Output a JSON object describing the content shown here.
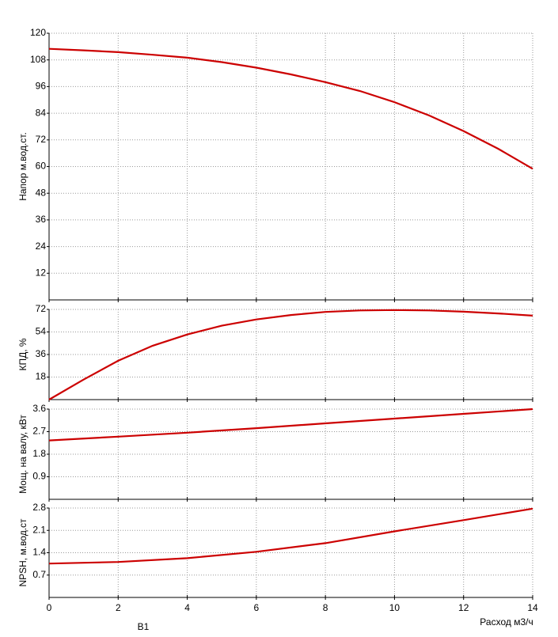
{
  "chart_data": [
    {
      "type": "line",
      "ylabel": "Напор м.вод.ст.",
      "x": [
        0,
        1,
        2,
        3,
        4,
        5,
        6,
        7,
        8,
        9,
        10,
        11,
        12,
        13,
        14
      ],
      "values": [
        113,
        112.3,
        111.5,
        110.3,
        109,
        107,
        104.5,
        101.5,
        98,
        94,
        89,
        83,
        76,
        68,
        59
      ],
      "color": "#cc0000",
      "xlim": [
        0,
        14
      ],
      "xticks": [
        0,
        2,
        4,
        6,
        8,
        10,
        12,
        14
      ],
      "ylim": [
        0,
        120
      ],
      "yticks": [
        12,
        24,
        36,
        48,
        60,
        72,
        84,
        96,
        108,
        120
      ],
      "grid": true
    },
    {
      "type": "line",
      "ylabel": "КПД, %",
      "x": [
        0,
        1,
        2,
        3,
        4,
        5,
        6,
        7,
        8,
        9,
        10,
        11,
        12,
        13,
        14
      ],
      "values": [
        0,
        16,
        31,
        43,
        52,
        59,
        64,
        67.5,
        70,
        71.2,
        71.5,
        71.2,
        70.2,
        68.8,
        67
      ],
      "color": "#cc0000",
      "xlim": [
        0,
        14
      ],
      "xticks": [
        0,
        2,
        4,
        6,
        8,
        10,
        12,
        14
      ],
      "ylim": [
        0,
        72
      ],
      "yticks": [
        18,
        36,
        54,
        72
      ],
      "grid": true
    },
    {
      "type": "line",
      "ylabel": "Мощ. на валу, кВт",
      "x": [
        0,
        2,
        4,
        6,
        8,
        10,
        12,
        14
      ],
      "values": [
        2.35,
        2.5,
        2.66,
        2.84,
        3.03,
        3.22,
        3.41,
        3.6
      ],
      "color": "#cc0000",
      "xlim": [
        0,
        14
      ],
      "xticks": [
        0,
        2,
        4,
        6,
        8,
        10,
        12,
        14
      ],
      "ylim": [
        0,
        3.6
      ],
      "yticks": [
        0.9,
        1.8,
        2.7,
        3.6
      ],
      "grid": true
    },
    {
      "type": "line",
      "ylabel": "NPSH, м.вод.ст",
      "xlabel": "Расход м3/ч",
      "x": [
        0,
        2,
        4,
        6,
        8,
        10,
        12,
        14
      ],
      "series": [
        {
          "name": "B1",
          "color": "#cc0000",
          "values": [
            1.06,
            1.11,
            1.23,
            1.43,
            1.7,
            2.07,
            2.42,
            2.78
          ]
        }
      ],
      "xlim": [
        0,
        14
      ],
      "xticks": [
        0,
        2,
        4,
        6,
        8,
        10,
        12,
        14
      ],
      "ylim": [
        0,
        2.8
      ],
      "yticks": [
        0.7,
        1.4,
        2.1,
        2.8
      ],
      "grid": true,
      "show_xtick_labels": true
    }
  ]
}
